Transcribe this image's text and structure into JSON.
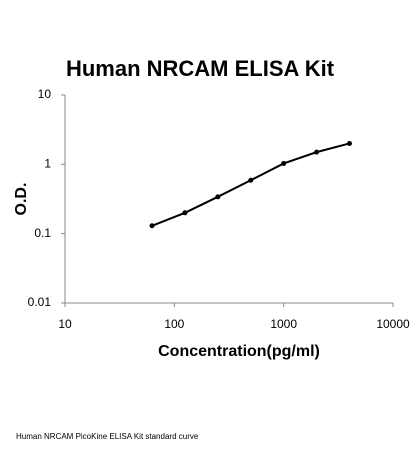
{
  "chart_data": {
    "type": "line",
    "title": "Human NRCAM ELISA Kit",
    "xlabel": "Concentration(pg/ml)",
    "ylabel": "O.D.",
    "x": [
      62.5,
      125,
      250,
      500,
      1000,
      2000,
      4000
    ],
    "series": [
      {
        "name": "Standard curve",
        "color": "#000000",
        "values": [
          0.13,
          0.2,
          0.34,
          0.59,
          1.03,
          1.5,
          2.0
        ]
      }
    ],
    "xscale": "log",
    "yscale": "log",
    "xlim": [
      10,
      10000
    ],
    "xticks": [
      10,
      100,
      1000,
      10000
    ],
    "ylim": [
      0.01,
      10
    ],
    "yticks": [
      0.01,
      0.1,
      1,
      10
    ],
    "caption": "Human NRCAM PicoKine ELISA Kit standard curve"
  }
}
